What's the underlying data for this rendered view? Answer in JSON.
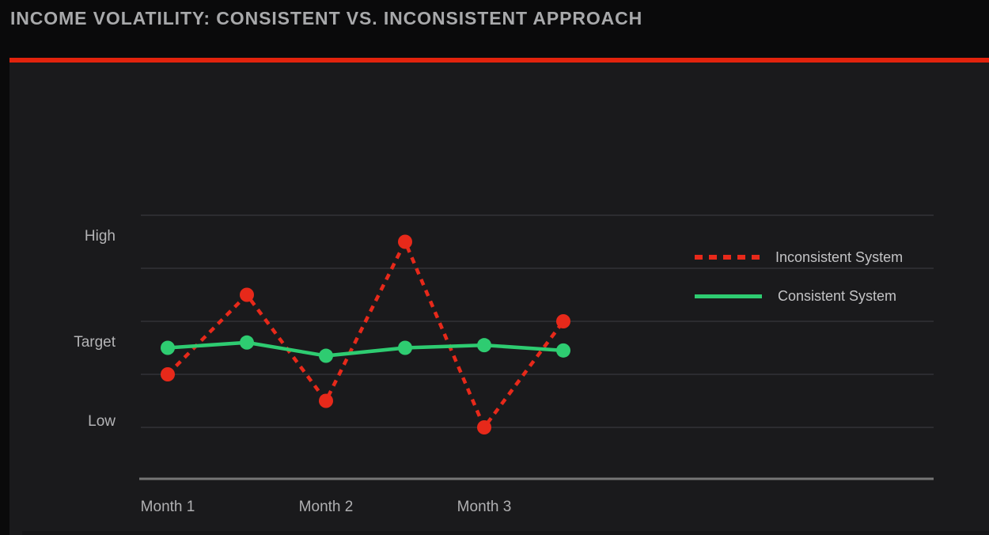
{
  "page": {
    "title": "INCOME VOLATILITY: CONSISTENT VS. INCONSISTENT APPROACH"
  },
  "colors": {
    "accent_red": "#e2230d",
    "series_red": "#e7291a",
    "series_green": "#2ecc71",
    "panel_bg": "#1a1a1c",
    "outer_bg": "#0a0a0b",
    "gridline": "#323236",
    "axis_line": "#757575"
  },
  "chart_data": {
    "type": "line",
    "title": "INCOME VOLATILITY: CONSISTENT VS. INCONSISTENT APPROACH",
    "x_axis": {
      "n_points": 6,
      "ticks": [
        {
          "label": "Month 1",
          "point_index": 0
        },
        {
          "label": "Month 2",
          "point_index": 2
        },
        {
          "label": "Month 3",
          "point_index": 4
        }
      ]
    },
    "y_axis": {
      "range": [
        0,
        5.5
      ],
      "gridline_values": [
        1,
        2,
        3,
        4,
        5
      ],
      "ticks": [
        {
          "label": "High",
          "value": 4.6
        },
        {
          "label": "Target",
          "value": 2.6
        },
        {
          "label": "Low",
          "value": 1.1
        }
      ]
    },
    "series": [
      {
        "name": "Inconsistent System",
        "color": "#e7291a",
        "line_style": "dashed",
        "values": [
          2,
          3.5,
          1.5,
          4.5,
          1,
          3
        ]
      },
      {
        "name": "Consistent System",
        "color": "#2ecc71",
        "line_style": "solid",
        "values": [
          2.5,
          2.6,
          2.35,
          2.5,
          2.55,
          2.45
        ]
      }
    ],
    "legend": {
      "position": "right-middle",
      "entries": [
        "Inconsistent System",
        "Consistent System"
      ]
    },
    "grid": true
  }
}
